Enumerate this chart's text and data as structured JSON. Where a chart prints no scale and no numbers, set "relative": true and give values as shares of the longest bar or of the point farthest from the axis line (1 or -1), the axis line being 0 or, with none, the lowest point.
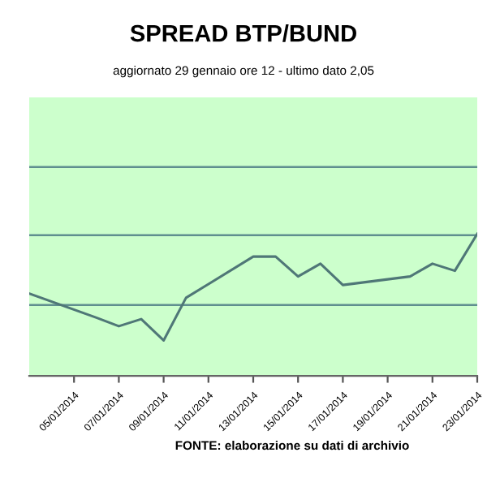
{
  "chart_data": {
    "type": "line",
    "title": "SPREAD BTP/BUND",
    "subtitle": "aggiornato 29 gennaio ore 12 - ultimo dato 2,05",
    "annotations": [
      "FONTE: elaborazione su dati di archivio"
    ],
    "relative": true,
    "x": [
      "2014-01-03",
      "2014-01-06",
      "2014-01-07",
      "2014-01-08",
      "2014-01-09",
      "2014-01-10",
      "2014-01-13",
      "2014-01-14",
      "2014-01-15",
      "2014-01-16",
      "2014-01-17",
      "2014-01-20",
      "2014-01-21",
      "2014-01-22",
      "2014-01-23"
    ],
    "series": [
      {
        "color": "#4f7777",
        "values": [
          0.58,
          0.41,
          0.35,
          0.4,
          0.25,
          0.55,
          0.84,
          0.84,
          0.7,
          0.79,
          0.64,
          0.7,
          0.79,
          0.74,
          1.0
        ]
      }
    ],
    "xlim": [
      "2014-01-03",
      "2014-01-23"
    ],
    "xticks": [
      {
        "value": "2014-01-05",
        "label": "05/01/2014"
      },
      {
        "value": "2014-01-07",
        "label": "07/01/2014"
      },
      {
        "value": "2014-01-09",
        "label": "09/01/2014"
      },
      {
        "value": "2014-01-11",
        "label": "11/01/2014"
      },
      {
        "value": "2014-01-13",
        "label": "13/01/2014"
      },
      {
        "value": "2014-01-15",
        "label": "15/01/2014"
      },
      {
        "value": "2014-01-17",
        "label": "17/01/2014"
      },
      {
        "value": "2014-01-19",
        "label": "19/01/2014"
      },
      {
        "value": "2014-01-21",
        "label": "21/01/2014"
      },
      {
        "value": "2014-01-23",
        "label": "23/01/2014"
      }
    ],
    "ref_lines": [
      {
        "axis": "y",
        "value": 0.5,
        "color": "#5f8f8f"
      },
      {
        "axis": "y",
        "value": 0.99,
        "color": "#5f8f8f"
      },
      {
        "axis": "y",
        "value": 1.47,
        "color": "#5f8f8f"
      }
    ],
    "legend": false,
    "marker": "none",
    "line_style": "solid",
    "tick_labels": "x"
  }
}
